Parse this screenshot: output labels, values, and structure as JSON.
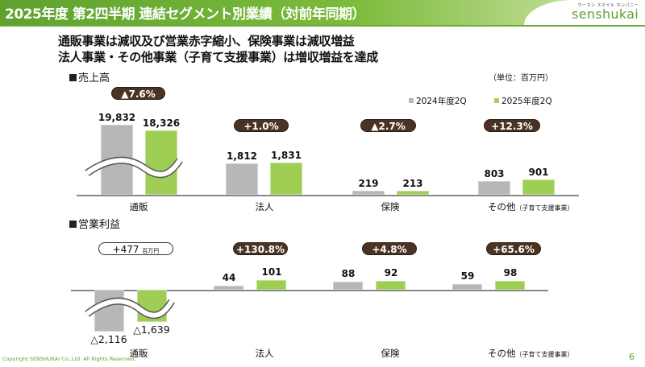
{
  "header": {
    "title": "2025年度 第2四半期 連結セグメント別業績（対前年同期）",
    "logo_tagline": "ウーマン スマイル カンパニー",
    "logo_name": "senshukai"
  },
  "headline": [
    "通販事業は減収及び営業赤字縮小、保険事業は減収増益",
    "法人事業・その他事業（子育て支援事業）は増収増益を達成"
  ],
  "unit": "（単位：百万円）",
  "legend": [
    {
      "label": "2024年度2Q",
      "color": "#b7b7b7"
    },
    {
      "label": "2025年度2Q",
      "color": "#a4d35a"
    }
  ],
  "sales": {
    "title": "売上高",
    "categories": [
      "通販",
      "法人",
      "保険",
      "その他"
    ],
    "category_note": "（子育て支援事業）",
    "values_2024": [
      "19,832",
      "1,812",
      "219",
      "803"
    ],
    "values_2025": [
      "18,326",
      "1,831",
      "213",
      "901"
    ],
    "changes": [
      "▲7.6%",
      "+1.0%",
      "▲2.7%",
      "+12.3%"
    ]
  },
  "profit": {
    "title": "営業利益",
    "categories": [
      "通販",
      "法人",
      "保険",
      "その他"
    ],
    "category_note": "（子育て支援事業）",
    "values_2024": [
      "△2,116",
      "44",
      "88",
      "59"
    ],
    "values_2025": [
      "△1,639",
      "101",
      "92",
      "98"
    ],
    "changes": [
      "+477",
      "+130.8%",
      "+4.8%",
      "+65.6%"
    ],
    "change_unit": "百万円"
  },
  "chart_data": [
    {
      "type": "bar",
      "title": "売上高",
      "categories": [
        "通販",
        "法人",
        "保険",
        "その他（子育て支援事業）"
      ],
      "series": [
        {
          "name": "2024年度2Q",
          "values": [
            19832,
            1812,
            219,
            803
          ]
        },
        {
          "name": "2025年度2Q",
          "values": [
            18326,
            1831,
            213,
            901
          ]
        }
      ],
      "broken_axis": true
    },
    {
      "type": "bar",
      "title": "営業利益",
      "categories": [
        "通販",
        "法人",
        "保険",
        "その他（子育て支援事業）"
      ],
      "series": [
        {
          "name": "2024年度2Q",
          "values": [
            -2116,
            44,
            88,
            59
          ]
        },
        {
          "name": "2025年度2Q",
          "values": [
            -1639,
            101,
            92,
            98
          ]
        }
      ],
      "broken_axis": true
    }
  ],
  "footer": {
    "copyright": "Copyright SENSHUKAI Co.,Ltd. All Rights Reserved.",
    "page": "6"
  }
}
